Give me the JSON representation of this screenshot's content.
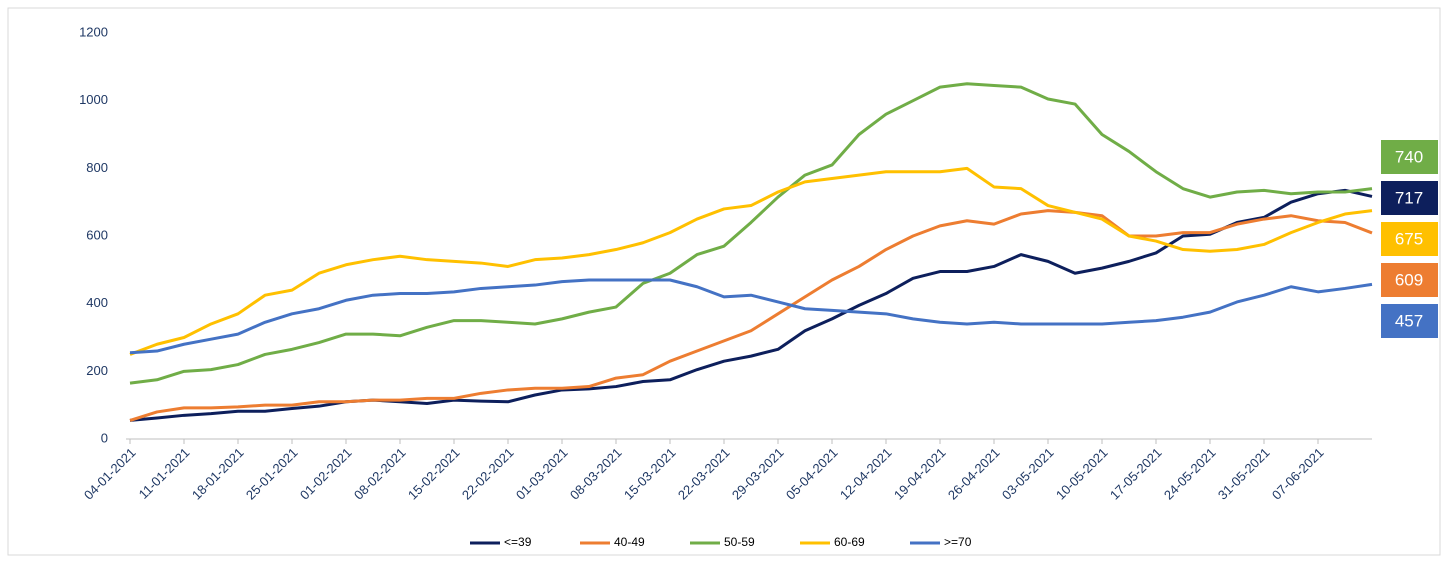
{
  "chart_data": {
    "type": "line",
    "categories": [
      "04-01-2021",
      null,
      "11-01-2021",
      null,
      "18-01-2021",
      null,
      "25-01-2021",
      null,
      "01-02-2021",
      null,
      "08-02-2021",
      null,
      "15-02-2021",
      null,
      "22-02-2021",
      null,
      "01-03-2021",
      null,
      "08-03-2021",
      null,
      "15-03-2021",
      null,
      "22-03-2021",
      null,
      "29-03-2021",
      null,
      "05-04-2021",
      null,
      "12-04-2021",
      null,
      "19-04-2021",
      null,
      "26-04-2021",
      null,
      "03-05-2021",
      null,
      "10-05-2021",
      null,
      "17-05-2021",
      null,
      "24-05-2021",
      null,
      "31-05-2021",
      null,
      "07-06-2021",
      null,
      null
    ],
    "ylim": [
      0,
      1200
    ],
    "yticks": [
      0,
      200,
      400,
      600,
      800,
      1000,
      1200
    ],
    "grid": false,
    "legend": "bottom",
    "series": [
      {
        "name": "<=39",
        "color": "#0d1f5c",
        "values": [
          55,
          62,
          70,
          75,
          82,
          82,
          90,
          97,
          110,
          115,
          110,
          105,
          115,
          112,
          110,
          130,
          145,
          148,
          155,
          170,
          175,
          205,
          230,
          245,
          265,
          320,
          355,
          395,
          430,
          475,
          495,
          495,
          510,
          545,
          525,
          490,
          505,
          525,
          550,
          600,
          605,
          640,
          655,
          700,
          725,
          735,
          717
        ]
      },
      {
        "name": "40-49",
        "color": "#ed7d31",
        "values": [
          55,
          80,
          92,
          92,
          95,
          100,
          100,
          110,
          110,
          115,
          115,
          120,
          120,
          135,
          145,
          150,
          150,
          155,
          180,
          190,
          230,
          260,
          290,
          320,
          370,
          420,
          470,
          510,
          560,
          600,
          630,
          645,
          635,
          665,
          675,
          670,
          660,
          600,
          600,
          610,
          610,
          635,
          650,
          660,
          645,
          640,
          609
        ]
      },
      {
        "name": "50-59",
        "color": "#70ad47",
        "values": [
          165,
          175,
          200,
          205,
          220,
          250,
          265,
          285,
          310,
          310,
          305,
          330,
          350,
          350,
          345,
          340,
          355,
          375,
          390,
          460,
          490,
          545,
          570,
          640,
          715,
          780,
          810,
          900,
          960,
          1000,
          1040,
          1050,
          1045,
          1040,
          1005,
          990,
          900,
          850,
          790,
          740,
          715,
          730,
          735,
          725,
          730,
          730,
          740
        ]
      },
      {
        "name": "60-69",
        "color": "#ffc000",
        "values": [
          250,
          280,
          300,
          340,
          370,
          425,
          440,
          490,
          515,
          530,
          540,
          530,
          525,
          520,
          510,
          530,
          535,
          545,
          560,
          580,
          610,
          650,
          680,
          690,
          730,
          760,
          770,
          780,
          790,
          790,
          790,
          800,
          745,
          740,
          690,
          670,
          650,
          600,
          585,
          560,
          555,
          560,
          575,
          610,
          640,
          665,
          675
        ]
      },
      {
        "name": ">=70",
        "color": "#4472c4",
        "values": [
          255,
          260,
          280,
          295,
          310,
          345,
          370,
          385,
          410,
          425,
          430,
          430,
          435,
          445,
          450,
          455,
          465,
          470,
          470,
          470,
          470,
          450,
          420,
          425,
          405,
          385,
          380,
          375,
          370,
          355,
          345,
          340,
          345,
          340,
          340,
          340,
          340,
          345,
          350,
          360,
          375,
          405,
          425,
          450,
          435,
          445,
          457
        ]
      }
    ]
  }
}
